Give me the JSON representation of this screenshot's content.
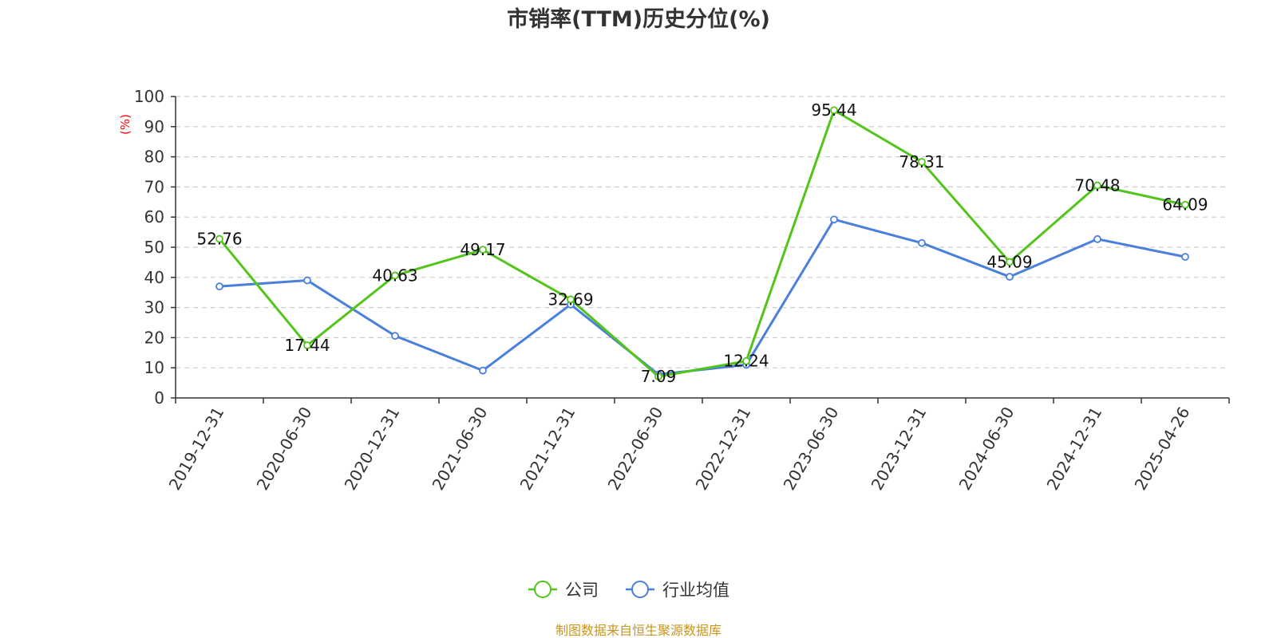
{
  "chart_data": {
    "type": "line",
    "title": "市销率(TTM)历史分位(%)",
    "ylabel": "(%)",
    "xlabel": "",
    "ylim": [
      0,
      100
    ],
    "yticks": [
      0,
      10,
      20,
      30,
      40,
      50,
      60,
      70,
      80,
      90,
      100
    ],
    "grid": true,
    "legend_position": "bottom",
    "categories": [
      "2019-12-31",
      "2020-06-30",
      "2020-12-31",
      "2021-06-30",
      "2021-12-31",
      "2022-06-30",
      "2022-12-31",
      "2023-06-30",
      "2023-12-31",
      "2024-06-30",
      "2024-12-31",
      "2025-04-26"
    ],
    "series": [
      {
        "name": "公司",
        "color": "#52c41a",
        "values": [
          52.76,
          17.44,
          40.63,
          49.17,
          32.69,
          7.09,
          12.24,
          95.44,
          78.31,
          45.09,
          70.48,
          64.09
        ],
        "labels": [
          "52.76",
          "17.44",
          "40.63",
          "49.17",
          "32.69",
          "7.09",
          "12.24",
          "95.44",
          "78.31",
          "45.09",
          "70.48",
          "64.09"
        ]
      },
      {
        "name": "行业均值",
        "color": "#4a7fdb",
        "values": [
          37.0,
          39.0,
          20.6,
          9.1,
          31.0,
          7.8,
          11.0,
          59.2,
          51.4,
          40.2,
          52.7,
          46.8
        ]
      }
    ],
    "source": "制图数据来自恒生聚源数据库",
    "source_color": "#c8961e",
    "unit_color": "#ff0000"
  }
}
